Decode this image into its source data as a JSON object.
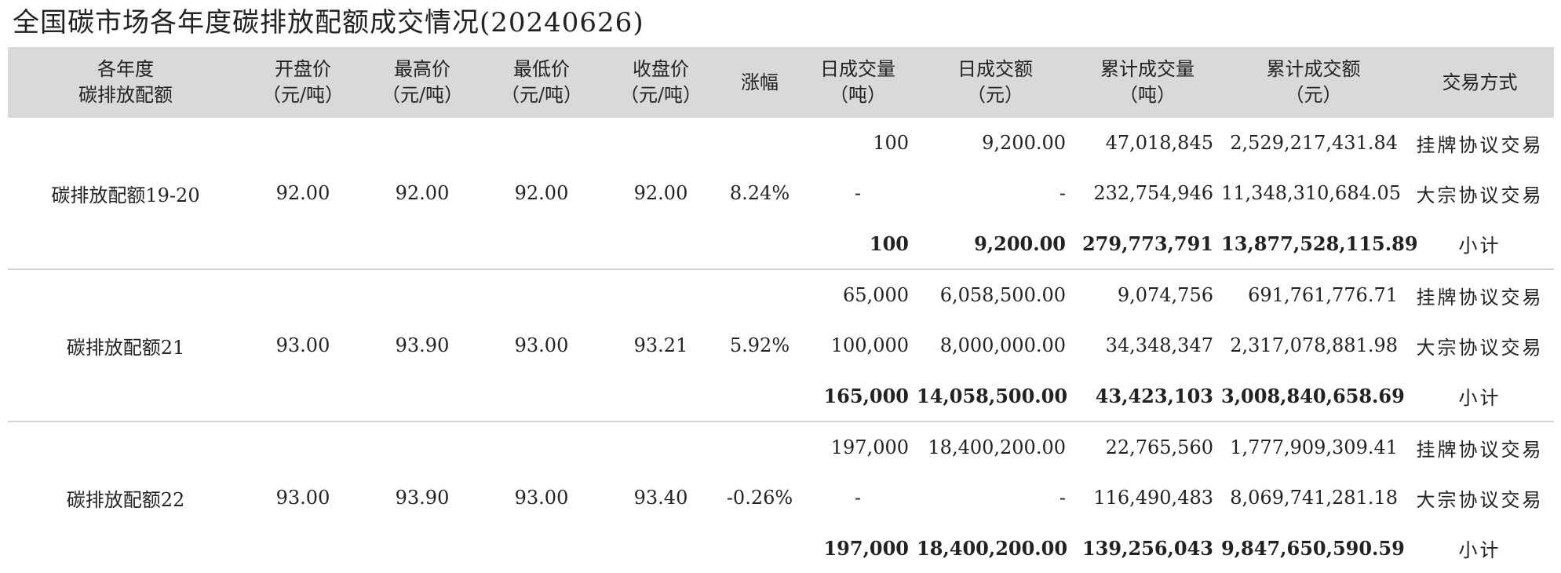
{
  "title": "全国碳市场各年度碳排放配额成交情况(20240626)",
  "columns": [
    {
      "line1": "各年度",
      "line2": "碳排放配额"
    },
    {
      "line1": "开盘价",
      "line2": "（元/吨）"
    },
    {
      "line1": "最高价",
      "line2": "（元/吨）"
    },
    {
      "line1": "最低价",
      "line2": "（元/吨）"
    },
    {
      "line1": "收盘价",
      "line2": "（元/吨）"
    },
    {
      "line1": "涨幅",
      "line2": ""
    },
    {
      "line1": "日成交量",
      "line2": "（吨）"
    },
    {
      "line1": "日成交额",
      "line2": "（元）"
    },
    {
      "line1": "累计成交量",
      "line2": "（吨）"
    },
    {
      "line1": "累计成交额",
      "line2": "（元）"
    },
    {
      "line1": "交易方式",
      "line2": ""
    }
  ],
  "groups": [
    {
      "name": "碳排放配额19-20",
      "open": "92.00",
      "high": "92.00",
      "low": "92.00",
      "close": "92.00",
      "change": "8.24%",
      "rows": [
        {
          "daily_volume": "100",
          "daily_amount": "9,200.00",
          "cum_volume": "47,018,845",
          "cum_amount": "2,529,217,431.84",
          "method": "挂牌协议交易"
        },
        {
          "daily_volume": "-",
          "daily_amount": "-",
          "cum_volume": "232,754,946",
          "cum_amount": "11,348,310,684.05",
          "method": "大宗协议交易"
        },
        {
          "daily_volume": "100",
          "daily_amount": "9,200.00",
          "cum_volume": "279,773,791",
          "cum_amount": "13,877,528,115.89",
          "method": "小计"
        }
      ]
    },
    {
      "name": "碳排放配额21",
      "open": "93.00",
      "high": "93.90",
      "low": "93.00",
      "close": "93.21",
      "change": "5.92%",
      "rows": [
        {
          "daily_volume": "65,000",
          "daily_amount": "6,058,500.00",
          "cum_volume": "9,074,756",
          "cum_amount": "691,761,776.71",
          "method": "挂牌协议交易"
        },
        {
          "daily_volume": "100,000",
          "daily_amount": "8,000,000.00",
          "cum_volume": "34,348,347",
          "cum_amount": "2,317,078,881.98",
          "method": "大宗协议交易"
        },
        {
          "daily_volume": "165,000",
          "daily_amount": "14,058,500.00",
          "cum_volume": "43,423,103",
          "cum_amount": "3,008,840,658.69",
          "method": "小计"
        }
      ]
    },
    {
      "name": "碳排放配额22",
      "open": "93.00",
      "high": "93.90",
      "low": "93.00",
      "close": "93.40",
      "change": "-0.26%",
      "rows": [
        {
          "daily_volume": "197,000",
          "daily_amount": "18,400,200.00",
          "cum_volume": "22,765,560",
          "cum_amount": "1,777,909,309.41",
          "method": "挂牌协议交易"
        },
        {
          "daily_volume": "-",
          "daily_amount": "-",
          "cum_volume": "116,490,483",
          "cum_amount": "8,069,741,281.18",
          "method": "大宗协议交易"
        },
        {
          "daily_volume": "197,000",
          "daily_amount": "18,400,200.00",
          "cum_volume": "139,256,043",
          "cum_amount": "9,847,650,590.59",
          "method": "小计"
        }
      ]
    }
  ]
}
